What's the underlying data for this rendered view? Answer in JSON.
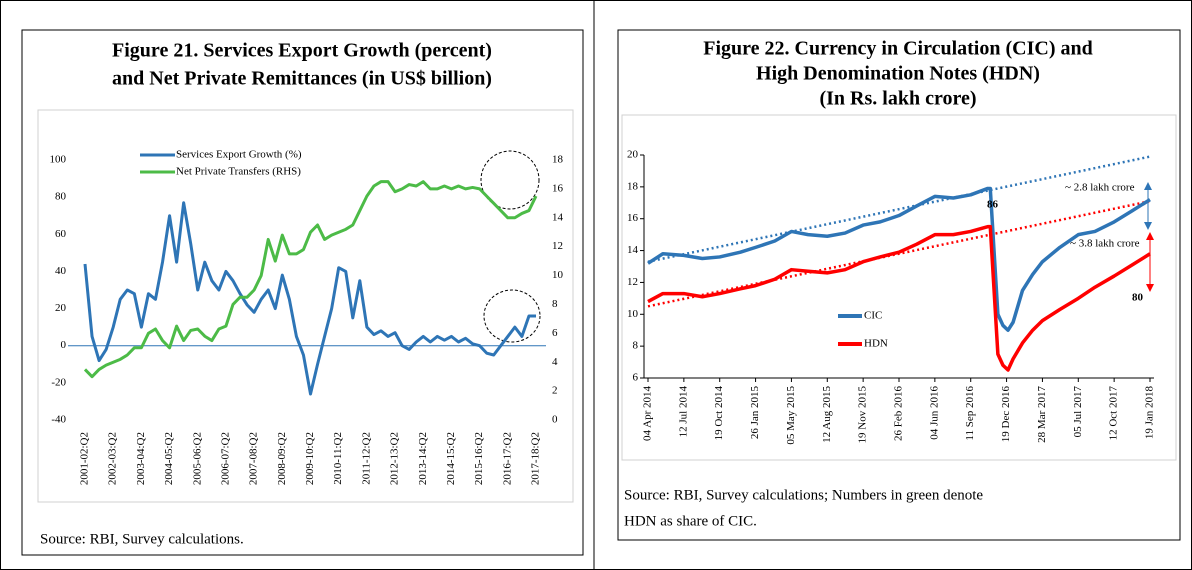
{
  "chart_data": [
    {
      "type": "line",
      "title": [
        "Figure 21. Services Export Growth (percent)",
        "and Net Private Remittances (in US$ billion)"
      ],
      "source": [
        "Source: RBI, Survey calculations."
      ],
      "categories": [
        "2001-02:Q2",
        null,
        null,
        null,
        "2002-03:Q2",
        null,
        null,
        null,
        "2003-04:Q2",
        null,
        null,
        null,
        "2004-05:Q2",
        null,
        null,
        null,
        "2005-06:Q2",
        null,
        null,
        null,
        "2006-07:Q2",
        null,
        null,
        null,
        "2007-08:Q2",
        null,
        null,
        null,
        "2008-09:Q2",
        null,
        null,
        null,
        "2009-10:Q2",
        null,
        null,
        null,
        "2010-11:Q2",
        null,
        null,
        null,
        "2011-12:Q2",
        null,
        null,
        null,
        "2012-13:Q2",
        null,
        null,
        null,
        "2013-14:Q2",
        null,
        null,
        null,
        "2014-15:Q2",
        null,
        null,
        null,
        "2015-16:Q2",
        null,
        null,
        null,
        "2016-17:Q2",
        null,
        null,
        null,
        "2017-18:Q2"
      ],
      "series": [
        {
          "name": "Services Export Growth (%)",
          "color": "#2e75b6",
          "values": [
            44,
            5,
            -8,
            -2,
            10,
            25,
            30,
            28,
            10,
            28,
            25,
            45,
            70,
            45,
            77,
            55,
            30,
            45,
            35,
            30,
            40,
            35,
            28,
            22,
            18,
            25,
            30,
            20,
            38,
            25,
            5,
            -5,
            -26,
            -10,
            5,
            20,
            42,
            40,
            15,
            35,
            10,
            6,
            8,
            5,
            7,
            0,
            -2,
            2,
            5,
            2,
            5,
            3,
            5,
            2,
            4,
            1,
            0,
            -4,
            -5,
            0,
            5,
            10,
            5,
            16,
            16
          ]
        },
        {
          "name": "Net Private Transfers (RHS)",
          "color": "#4cbb47",
          "axis": "y2",
          "values": [
            3.5,
            3,
            3.5,
            3.8,
            4,
            4.2,
            4.5,
            5,
            5,
            6,
            6.3,
            5.5,
            5,
            6.5,
            5.5,
            6.2,
            6.3,
            5.8,
            5.5,
            6.3,
            6.5,
            8,
            8.5,
            8.5,
            9,
            10,
            12.5,
            11,
            12.8,
            11.5,
            11.5,
            11.8,
            13,
            13.5,
            12.5,
            12.8,
            13,
            13.2,
            13.5,
            14.5,
            15.5,
            16.2,
            16.5,
            16.5,
            15.8,
            16,
            16.3,
            16.2,
            16.5,
            16,
            16,
            16.2,
            16,
            16.2,
            16,
            16.1,
            16,
            15.5,
            15,
            14.5,
            14,
            14,
            14.3,
            14.5,
            15.5
          ]
        }
      ],
      "ylim": [
        -40,
        100
      ],
      "yticks": [
        -40,
        -20,
        0,
        20,
        40,
        60,
        80,
        100
      ],
      "y2lim": [
        0,
        18
      ],
      "y2ticks": [
        0,
        2,
        4,
        6,
        8,
        10,
        12,
        14,
        16,
        18
      ]
    },
    {
      "type": "line",
      "title": [
        "Figure 22. Currency in Circulation (CIC) and",
        "High Denomination Notes (HDN)",
        "(In Rs. lakh crore)"
      ],
      "source": [
        "Source: RBI, Survey calculations; Numbers in green denote",
        "HDN as share of CIC."
      ],
      "x": [
        "2014-04-04",
        "2014-05-15",
        "2014-07-12",
        "2014-09-01",
        "2014-10-19",
        "2014-12-15",
        "2015-01-26",
        "2015-03-20",
        "2015-05-05",
        "2015-06-20",
        "2015-08-12",
        "2015-09-30",
        "2015-11-19",
        "2016-01-05",
        "2016-02-26",
        "2016-04-15",
        "2016-06-04",
        "2016-07-25",
        "2016-09-11",
        "2016-10-28",
        "2016-11-04",
        "2016-11-25",
        "2016-12-09",
        "2016-12-23",
        "2017-01-06",
        "2017-02-01",
        "2017-03-01",
        "2017-03-28",
        "2017-05-15",
        "2017-07-05",
        "2017-08-20",
        "2017-10-12",
        "2017-12-01",
        "2018-01-19"
      ],
      "series": [
        {
          "name": "CIC",
          "color": "#2e75b6",
          "values": [
            13.2,
            13.8,
            13.7,
            13.5,
            13.6,
            13.9,
            14.2,
            14.6,
            15.2,
            15.0,
            14.9,
            15.1,
            15.6,
            15.8,
            16.2,
            16.8,
            17.4,
            17.3,
            17.5,
            17.9,
            17.9,
            10.0,
            9.3,
            9.0,
            9.5,
            11.5,
            12.5,
            13.3,
            14.2,
            15.0,
            15.2,
            15.8,
            16.5,
            17.2
          ]
        },
        {
          "name": "HDN",
          "color": "#ff0000",
          "values": [
            10.8,
            11.3,
            11.3,
            11.1,
            11.3,
            11.6,
            11.8,
            12.2,
            12.8,
            12.7,
            12.6,
            12.8,
            13.3,
            13.6,
            13.9,
            14.4,
            15.0,
            15.0,
            15.2,
            15.5,
            15.5,
            7.5,
            6.8,
            6.5,
            7.2,
            8.2,
            9.0,
            9.6,
            10.3,
            11.0,
            11.7,
            12.4,
            13.1,
            13.8
          ]
        }
      ],
      "trend_lines": [
        {
          "color": "#2e75b6",
          "x": [
            "2014-04-04",
            "2018-01-19"
          ],
          "values": [
            13.3,
            19.9
          ]
        },
        {
          "color": "#ff0000",
          "x": [
            "2014-04-04",
            "2018-01-19"
          ],
          "values": [
            10.5,
            17.1
          ]
        }
      ],
      "annotations": [
        {
          "text": "~ 2.8 lakh crore",
          "color": "#2e75b6"
        },
        {
          "text": "~ 3.8 lakh crore",
          "color": "#ff0000"
        },
        {
          "text": "86",
          "color": "#3aa335"
        },
        {
          "text": "80",
          "color": "#3aa335"
        }
      ],
      "xlim": [
        "2014-04-04",
        "2018-01-19"
      ],
      "xticks": [
        {
          "value": "2014-04-04",
          "label": "04 Apr 2014"
        },
        {
          "value": "2014-07-12",
          "label": "12 Jul 2014"
        },
        {
          "value": "2014-10-19",
          "label": "19 Oct 2014"
        },
        {
          "value": "2015-01-26",
          "label": "26 Jan 2015"
        },
        {
          "value": "2015-05-05",
          "label": "05 May 2015"
        },
        {
          "value": "2015-08-12",
          "label": "12 Aug 2015"
        },
        {
          "value": "2015-11-19",
          "label": "19 Nov 2015"
        },
        {
          "value": "2016-02-26",
          "label": "26 Feb 2016"
        },
        {
          "value": "2016-06-04",
          "label": "04 Jun 2016"
        },
        {
          "value": "2016-09-11",
          "label": "11 Sep 2016"
        },
        {
          "value": "2016-12-19",
          "label": "19 Dec 2016"
        },
        {
          "value": "2017-03-28",
          "label": "28 Mar 2017"
        },
        {
          "value": "2017-07-05",
          "label": "05 Jul 2017"
        },
        {
          "value": "2017-10-12",
          "label": "12 Oct 2017"
        },
        {
          "value": "2018-01-19",
          "label": "19 Jan 2018"
        }
      ],
      "ylim": [
        6,
        20
      ],
      "yticks": [
        6,
        8,
        10,
        12,
        14,
        16,
        18,
        20
      ]
    }
  ]
}
